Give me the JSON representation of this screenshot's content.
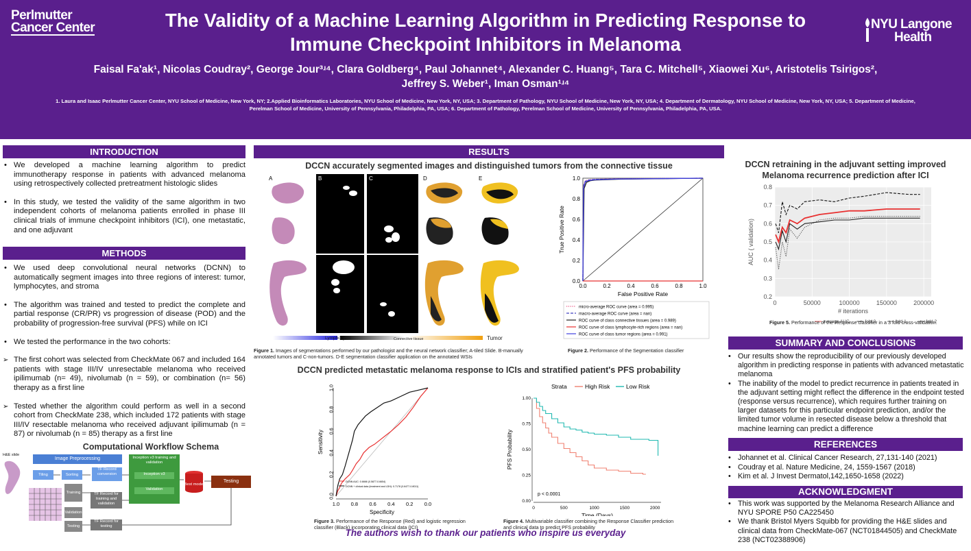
{
  "header": {
    "logo_left_line1": "Perlmutter",
    "logo_left_line2": "Cancer Center",
    "logo_right_line1": "NYU Langone",
    "logo_right_line2": "Health",
    "title_line1": "The Validity of a Machine Learning Algorithm in Predicting Response to",
    "title_line2": "Immune Checkpoint Inhibitors in Melanoma",
    "authors_line1": "Faisal Fa'ak¹, Nicolas Coudray², George Jour³ʴ⁴, Clara Goldberg⁴, Paul Johannet⁴, Alexander C. Huang⁵, Tara C. Mitchell⁵, Xiaowei Xu⁶, Aristotelis Tsirigos²,",
    "authors_line2": "Jeffrey S. Weber¹, Iman Osman¹ʴ⁴",
    "affiliations": "1. Laura and Isaac Perlmutter Cancer Center, NYU School of Medicine, New York, NY; 2.Applied Bioinformatics Laboratories, NYU School of Medicine, New York, NY, USA; 3. Department of Pathology, NYU School of Medicine, New York, NY, USA; 4. Department of Dermatology, NYU School of Medicine, New York, NY, USA; 5. Department of Medicine, Perelman School of Medicine, University of Pennsylvania, Philadelphia, PA, USA; 6. Department of Pathology, Perelman School of Medicine, University of Pennsylvania, Philadelphia, PA, USA."
  },
  "introduction": {
    "heading": "INTRODUCTION",
    "bullets": [
      "We developed a machine learning algorithm to predict immunotherapy response in patients with advanced melanoma using retrospectively collected pretreatment histologic slides",
      "In this study, we tested the validity of the same algorithm in two independent cohorts of melanoma patients enrolled in phase III clinical trials of immune checkpoint inhibitors (ICI), one metastatic, and one adjuvant"
    ]
  },
  "methods": {
    "heading": "METHODS",
    "bullets": [
      "We used deep convolutional neural networks (DCNN) to automatically segment images into three regions of interest: tumor, lymphocytes, and stroma",
      "The algorithm was trained and tested to predict the complete and partial response (CR/PR) vs progression of disease (POD) and the probability of progression-free survival (PFS) while on ICI",
      "We tested the performance in the two cohorts:"
    ],
    "arrows": [
      "The first cohort was selected from CheckMate 067 and included 164 patients with stage III/IV unresectable melanoma who received ipilimumab (n= 49), nivolumab (n = 59), or combination (n= 56) therapy as a first line",
      "Tested whether the algorithm could perform as well in a second cohort from CheckMate 238, which included 172 patients with stage III/IV resectable melanoma who received adjuvant ipilimumab (n = 87) or nivolumab (n = 85) therapy as a first line"
    ]
  },
  "workflow": {
    "title": "Computational Workflow Schema",
    "he_slide": "H&E slide",
    "image_preprocessing": "Image Preprocessing",
    "tiling": "Tiling",
    "sorting": "Sorting",
    "tfrecord_conversion": "TF Record conversion",
    "training": "Training",
    "validation": "Validation",
    "testing": "Testing",
    "tf_train_val": "TF Record for training and validation",
    "tf_testing": "TF Record for testing",
    "inception": "Inception v3 training and validation",
    "inception_inner": "Inception v3",
    "validation_inner": "Validation",
    "best_model": "Best model",
    "testing_final": "Testing"
  },
  "results": {
    "heading": "RESULTS",
    "seg_title": "DCCN accurately segmented images and distinguished tumors from the connective tissue",
    "panel_labels": [
      "A",
      "B",
      "C",
      "D",
      "E"
    ],
    "legend_lymph": "Lymphocytes",
    "legend_conn": "Connective tissue",
    "legend_tumor": "Tumor",
    "fig1_bold": "Figure 1.",
    "fig1_text": " Images of segmentations performed by our pathologist and the neural network classifier; A-tiled Slide. B-manually annotated tumors and C-non-tumors. D-E segmentation classifier application on the annotated WSIs",
    "fig2_bold": "Figure 2.",
    "fig2_text": " Performance of the Segmentation classifier",
    "pred_title": "DCCN predicted metastatic melanoma response to ICIs and stratified patient's PFS probability",
    "fig3_bold": "Figure 3.",
    "fig3_text": " Performance of the Response (Red) and logistic regression classifier (Black) incorporating clinical data (ICI)",
    "fig4_bold": "Figure 4.",
    "fig4_text": " Multivariable classifier combining the Response Classifier prediction and clinical data to predict PFS probability"
  },
  "right": {
    "retrain_title_line1": "DCCN retraining in the adjuvant setting improved",
    "retrain_title_line2": "Melanoma recurrence prediction after ICI",
    "fig5_bold": "Figure 5.",
    "fig5_text": " Performance of the Response classifier in a 3 fold cross-validation.",
    "summary_heading": "SUMMARY AND CONCLUSIONS",
    "summary_bullets": [
      "Our results show the reproducibility of our previously developed algorithm in predicting response in patients with advanced metastatic melanoma",
      "The inability of the model to predict recurrence in patients treated in the adjuvant setting might reflect the difference in the endpoint tested (response versus recurrence), which requires further training on larger datasets for this particular endpoint prediction, and/or the limited tumor volume in resected disease below a threshold that machine learning can predict a difference"
    ],
    "references_heading": "REFERENCES",
    "references": [
      "Johannet et al. Clinical Cancer Research, 27,131-140 (2021)",
      "Coudray et al. Nature Medicine, 24, 1559-1567 (2018)",
      "Kim et al. J Invest Dermatol,142,1650-1658 (2022)"
    ],
    "ack_heading": "ACKNOWLEDGMENT",
    "ack_bullets": [
      "This work was supported by the Melanoma Research Alliance and NYU SPORE P50 CA225450",
      "We thank Bristol Myers Squibb for providing the H&E slides and clinical data from CheckMate-067 (NCT01844505) and CheckMate 238 (NCT02388906)"
    ]
  },
  "footer": {
    "thanks": "The authors wish to thank our patients who inspire us everyday"
  },
  "colors": {
    "purple": "#5a1f8d",
    "red": "#e83030",
    "blue": "#3f3fd8",
    "teal": "#1fb8b0",
    "salmon": "#f08070"
  },
  "chart_data": [
    {
      "id": "roc_segmentation",
      "type": "line",
      "xlabel": "False Positive Rate",
      "ylabel": "True Positive Rate",
      "xlim": [
        0,
        1
      ],
      "ylim": [
        0,
        1
      ],
      "ticks": [
        "0.0",
        "0.2",
        "0.4",
        "0.6",
        "0.8",
        "1.0"
      ],
      "legend_position": "bottom-right",
      "series": [
        {
          "name": "micro-average ROC curve (area = 0.995)",
          "color": "#e85080",
          "style": "dotted",
          "x": [
            0,
            0.005,
            0.02,
            0.05,
            0.1,
            0.3,
            1
          ],
          "y": [
            0,
            0.93,
            0.975,
            0.985,
            0.99,
            0.995,
            1
          ]
        },
        {
          "name": "macro-average ROC curve (area = nan)",
          "color": "#4040c0",
          "style": "dashed",
          "x": [
            0,
            0.005,
            0.02,
            0.05,
            0.1,
            0.3,
            1
          ],
          "y": [
            0,
            0.92,
            0.97,
            0.982,
            0.988,
            0.993,
            1
          ]
        },
        {
          "name": "ROC curve of class connective tissues (area = 0.989)",
          "color": "#222222",
          "style": "solid",
          "x": [
            0,
            0.01,
            0.03,
            0.06,
            0.1,
            0.3,
            1
          ],
          "y": [
            0,
            0.9,
            0.96,
            0.975,
            0.982,
            0.99,
            1
          ]
        },
        {
          "name": "ROC curve of class lymphocyte-rich regions (area = nan)",
          "color": "#e83030",
          "style": "solid",
          "x": [
            0,
            1
          ],
          "y": [
            0,
            0
          ]
        },
        {
          "name": "ROC curve of class tumor regions (area = 0.991)",
          "color": "#4040e0",
          "style": "solid",
          "x": [
            0,
            0.005,
            0.02,
            0.05,
            0.1,
            0.3,
            1
          ],
          "y": [
            0,
            0.9,
            0.965,
            0.978,
            0.985,
            0.992,
            1
          ]
        }
      ]
    },
    {
      "id": "roc_response",
      "type": "line",
      "xlabel": "Specificity",
      "ylabel": "Sensitivity",
      "xlim": [
        1.0,
        0.0
      ],
      "ylim": [
        0,
        1
      ],
      "xticks": [
        "1.0",
        "0.8",
        "0.6",
        "0.4",
        "0.2",
        "0.0"
      ],
      "yticks": [
        "0.0",
        "0.2",
        "0.4",
        "0.6",
        "0.8",
        "1.0"
      ],
      "series": [
        {
          "name": "DCNN AUC: 0.6666 (0.5877-0.6654)",
          "color": "#e83030",
          "x": [
            1.0,
            0.98,
            0.96,
            0.94,
            0.9,
            0.85,
            0.82,
            0.78,
            0.74,
            0.7,
            0.64,
            0.58,
            0.52,
            0.46,
            0.4,
            0.32,
            0.24,
            0.16,
            0.08,
            0.0
          ],
          "y": [
            0.0,
            0.05,
            0.08,
            0.12,
            0.16,
            0.2,
            0.24,
            0.3,
            0.34,
            0.4,
            0.45,
            0.48,
            0.52,
            0.56,
            0.6,
            0.66,
            0.73,
            0.82,
            0.92,
            1.0
          ]
        },
        {
          "name": "DCNN + clinical data (treatment and LDH): 0.7178 (0.6477-0.8011)",
          "color": "#111111",
          "x": [
            1.0,
            0.98,
            0.96,
            0.93,
            0.9,
            0.86,
            0.82,
            0.8,
            0.76,
            0.72,
            0.68,
            0.62,
            0.55,
            0.48,
            0.4,
            0.3,
            0.2,
            0.1,
            0.0
          ],
          "y": [
            0.0,
            0.1,
            0.16,
            0.2,
            0.28,
            0.4,
            0.52,
            0.6,
            0.66,
            0.7,
            0.74,
            0.78,
            0.82,
            0.86,
            0.88,
            0.92,
            0.96,
            0.98,
            1.0
          ]
        }
      ]
    },
    {
      "id": "km_pfs",
      "type": "line",
      "xlabel": "Time (Days)",
      "ylabel": "PFS Probability",
      "xlim": [
        0,
        2100
      ],
      "ylim": [
        0,
        1
      ],
      "xticks": [
        "0",
        "500",
        "1000",
        "1500",
        "2000"
      ],
      "yticks": [
        "0.00",
        "0.25",
        "0.50",
        "0.75",
        "1.00"
      ],
      "legend_title": "Strata",
      "annotation": "p < 0.0001",
      "series": [
        {
          "name": "High Risk",
          "color": "#f08070",
          "x": [
            0,
            50,
            100,
            150,
            200,
            250,
            300,
            400,
            500,
            600,
            700,
            800,
            900,
            1000,
            1200,
            1400,
            1500,
            1600,
            1700,
            1800,
            1850
          ],
          "y": [
            1.0,
            0.9,
            0.82,
            0.76,
            0.71,
            0.66,
            0.62,
            0.56,
            0.51,
            0.47,
            0.43,
            0.39,
            0.35,
            0.32,
            0.3,
            0.29,
            0.29,
            0.27,
            0.27,
            0.26,
            0.26
          ]
        },
        {
          "name": "Low Risk",
          "color": "#1fb8b0",
          "x": [
            0,
            50,
            100,
            150,
            200,
            300,
            400,
            500,
            600,
            700,
            800,
            900,
            1000,
            1200,
            1400,
            1600,
            1800,
            1900,
            2000,
            2050
          ],
          "y": [
            1.0,
            0.96,
            0.92,
            0.88,
            0.85,
            0.8,
            0.76,
            0.72,
            0.7,
            0.69,
            0.67,
            0.66,
            0.65,
            0.64,
            0.62,
            0.6,
            0.6,
            0.59,
            0.59,
            0.44
          ]
        }
      ]
    },
    {
      "id": "auc_iterations",
      "type": "line",
      "xlabel": "# iterations",
      "ylabel": "AUC ( validation)",
      "xlim": [
        0,
        210000
      ],
      "ylim": [
        0.2,
        0.8
      ],
      "xticks": [
        "0",
        "50000",
        "100000",
        "150000",
        "200000"
      ],
      "yticks": [
        "0.2",
        "0.3",
        "0.4",
        "0.5",
        "0.6",
        "0.7",
        "0.8"
      ],
      "series": [
        {
          "name": "average AUC",
          "color": "#e83030",
          "style": "solid",
          "x": [
            1000,
            5000,
            10000,
            15000,
            20000,
            30000,
            40000,
            60000,
            80000,
            100000,
            120000,
            150000,
            180000,
            195000
          ],
          "y": [
            0.54,
            0.5,
            0.58,
            0.55,
            0.62,
            0.6,
            0.63,
            0.65,
            0.66,
            0.67,
            0.67,
            0.68,
            0.68,
            0.68
          ]
        },
        {
          "name": "fold 0",
          "color": "#111111",
          "style": "dashed",
          "x": [
            1000,
            5000,
            10000,
            15000,
            20000,
            30000,
            40000,
            60000,
            80000,
            100000,
            120000,
            150000,
            180000,
            195000
          ],
          "y": [
            0.6,
            0.55,
            0.72,
            0.65,
            0.7,
            0.68,
            0.72,
            0.73,
            0.72,
            0.74,
            0.75,
            0.77,
            0.76,
            0.76
          ]
        },
        {
          "name": "fold 1",
          "color": "#555555",
          "style": "dotted",
          "x": [
            1000,
            5000,
            10000,
            15000,
            20000,
            30000,
            40000,
            60000,
            80000,
            100000,
            120000,
            150000,
            180000,
            195000
          ],
          "y": [
            0.47,
            0.35,
            0.5,
            0.42,
            0.57,
            0.52,
            0.58,
            0.62,
            0.63,
            0.63,
            0.64,
            0.64,
            0.64,
            0.64
          ]
        },
        {
          "name": "fold 2",
          "color": "#222222",
          "style": "solid",
          "x": [
            1000,
            5000,
            10000,
            15000,
            20000,
            30000,
            40000,
            60000,
            80000,
            100000,
            120000,
            150000,
            180000,
            195000
          ],
          "y": [
            0.5,
            0.46,
            0.56,
            0.5,
            0.6,
            0.57,
            0.6,
            0.61,
            0.62,
            0.62,
            0.63,
            0.63,
            0.63,
            0.63
          ]
        }
      ]
    }
  ]
}
